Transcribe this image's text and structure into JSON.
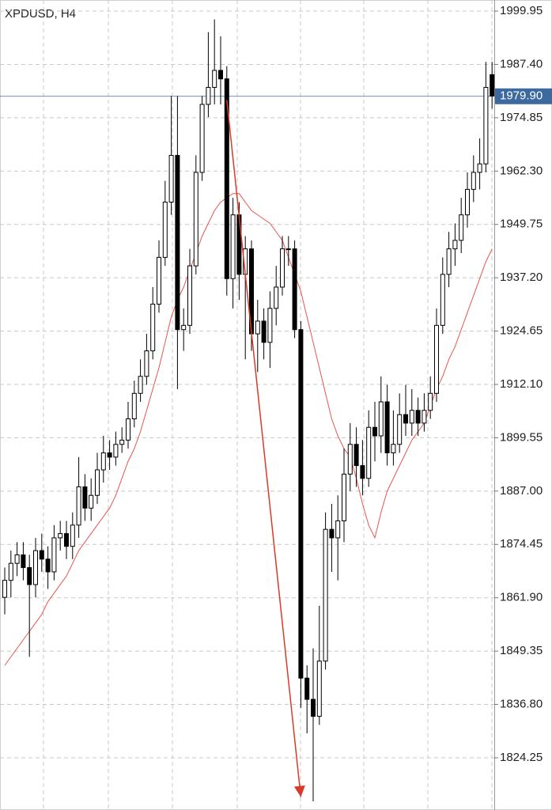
{
  "chart_data": {
    "type": "candlestick",
    "title": "XPDUSD, H4",
    "ylim": [
      1811.96,
      2002.56
    ],
    "yticks": [
      1999.95,
      {
        "value": 1987.4,
        "label": "1987.40"
      },
      1974.85,
      {
        "value": 1962.3,
        "label": "1962.30"
      },
      1949.75,
      {
        "value": 1937.2,
        "label": "1937.20"
      },
      1924.65,
      {
        "value": 1912.1,
        "label": "1912.10"
      },
      1899.55,
      {
        "value": 1887,
        "label": "1887.00"
      },
      1874.45,
      {
        "value": 1861.9,
        "label": "1861.90"
      },
      1849.35,
      {
        "value": 1836.8,
        "label": "1836.80"
      },
      1824.25
    ],
    "grid": true,
    "up_color": "#ffffff",
    "down_color": "#000000",
    "open": [
      1862,
      1866,
      1870,
      1872,
      1869,
      1865,
      1873,
      1871,
      1868,
      1876,
      1877,
      1874,
      1879,
      1888,
      1883,
      1886,
      1892,
      1896,
      1895,
      1898,
      1899,
      1904,
      1910,
      1914,
      1920,
      1931,
      1942,
      1955,
      1966,
      1925,
      1926,
      1940,
      1962,
      1978,
      1982,
      1986,
      1984,
      1937,
      1952,
      1938,
      1944,
      1924,
      1927,
      1922,
      1930,
      1935,
      1944,
      1944,
      1925,
      1843,
      1838,
      1834,
      1847,
      1878,
      1876,
      1880,
      1891,
      1898,
      1893,
      1890,
      1902,
      1900,
      1908,
      1896,
      1898,
      1905,
      1903,
      1906,
      1903,
      1906,
      1910,
      1926,
      1938,
      1944,
      1946,
      1952,
      1958,
      1962,
      1964,
      1985
    ],
    "high": [
      1869,
      1873,
      1875,
      1875,
      1872,
      1876,
      1877,
      1874,
      1879,
      1880,
      1880,
      1882,
      1895,
      1891,
      1890,
      1896,
      1900,
      1899,
      1901,
      1902,
      1908,
      1913,
      1918,
      1924,
      1935,
      1946,
      1960,
      1980,
      1980,
      1930,
      1944,
      1966,
      1980,
      1995,
      1998,
      1994,
      1987,
      1956,
      1955,
      1947,
      1946,
      1932,
      1930,
      1934,
      1940,
      1947,
      1947,
      1946,
      1927,
      1846,
      1850,
      1860,
      1882,
      1884,
      1886,
      1897,
      1903,
      1902,
      1899,
      1906,
      1908,
      1914,
      1912,
      1906,
      1910,
      1912,
      1911,
      1909,
      1910,
      1914,
      1930,
      1942,
      1948,
      1950,
      1956,
      1962,
      1966,
      1970,
      1988,
      1988
    ],
    "low": [
      1858,
      1862,
      1867,
      1866,
      1848,
      1862,
      1868,
      1864,
      1866,
      1873,
      1871,
      1871,
      1876,
      1880,
      1880,
      1884,
      1889,
      1892,
      1893,
      1896,
      1897,
      1902,
      1908,
      1912,
      1918,
      1929,
      1940,
      1952,
      1911,
      1920,
      1924,
      1938,
      1960,
      1975,
      1978,
      1978,
      1933,
      1930,
      1932,
      1918,
      1920,
      1915,
      1918,
      1916,
      1926,
      1933,
      1940,
      1923,
      1836,
      1830,
      1814,
      1832,
      1845,
      1868,
      1866,
      1875,
      1887,
      1888,
      1886,
      1888,
      1894,
      1896,
      1893,
      1893,
      1896,
      1900,
      1900,
      1900,
      1901,
      1904,
      1908,
      1924,
      1935,
      1940,
      1943,
      1949,
      1955,
      1958,
      1962,
      1977
    ],
    "close": [
      1866,
      1870,
      1872,
      1869,
      1865,
      1873,
      1871,
      1868,
      1876,
      1877,
      1874,
      1879,
      1888,
      1883,
      1886,
      1892,
      1896,
      1895,
      1898,
      1899,
      1904,
      1910,
      1914,
      1920,
      1931,
      1942,
      1955,
      1966,
      1925,
      1926,
      1940,
      1962,
      1978,
      1982,
      1986,
      1984,
      1937,
      1952,
      1938,
      1944,
      1924,
      1927,
      1922,
      1930,
      1935,
      1944,
      1944,
      1925,
      1843,
      1838,
      1834,
      1847,
      1878,
      1876,
      1880,
      1891,
      1898,
      1893,
      1890,
      1902,
      1900,
      1908,
      1896,
      1898,
      1905,
      1903,
      1906,
      1903,
      1906,
      1910,
      1926,
      1938,
      1944,
      1946,
      1952,
      1958,
      1962,
      1964,
      1982,
      1980
    ],
    "moving_average": {
      "color": "#e8554e",
      "values": [
        1846,
        1848,
        1850,
        1852,
        1854,
        1856,
        1858,
        1861,
        1863,
        1865,
        1867,
        1870,
        1873,
        1875,
        1877,
        1879,
        1881,
        1883,
        1886,
        1890,
        1894,
        1897,
        1901,
        1906,
        1911,
        1916,
        1922,
        1928,
        1932,
        1935,
        1939,
        1943,
        1947,
        1950,
        1953,
        1955,
        1956,
        1957,
        1957,
        1955,
        1953,
        1952,
        1951,
        1950,
        1948,
        1946,
        1942,
        1938,
        1934,
        1928,
        1922,
        1916,
        1910,
        1904,
        1900,
        1897,
        1895,
        1890,
        1884,
        1879,
        1876,
        1882,
        1887,
        1890,
        1893,
        1896,
        1899,
        1901,
        1903,
        1907,
        1911,
        1914,
        1918,
        1921,
        1925,
        1929,
        1933,
        1937,
        1941,
        1944
      ]
    },
    "current_price": {
      "value": 1979.9,
      "label": "1979.90",
      "color": "#3d6a9e"
    },
    "arrow": {
      "x": [
        36,
        48
      ],
      "y": [
        1979,
        1815
      ],
      "color": "#d93a2b"
    }
  }
}
